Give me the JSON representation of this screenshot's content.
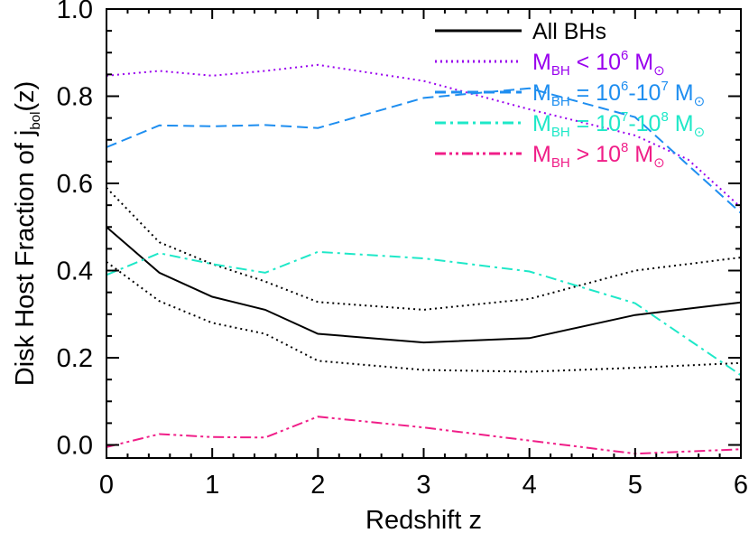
{
  "chart_data": {
    "type": "line",
    "title": "",
    "xlabel": "Redshift z",
    "ylabel": {
      "main": "Disk Host Fraction of j",
      "sub": "bol",
      "suffix": "(z)"
    },
    "xlim": [
      0,
      6
    ],
    "ylim": [
      -0.03,
      1.0
    ],
    "x_ticks": [
      0,
      1,
      2,
      3,
      4,
      5,
      6
    ],
    "x_tick_labels": [
      "0",
      "1",
      "2",
      "3",
      "4",
      "5",
      "6"
    ],
    "y_ticks": [
      0.0,
      0.2,
      0.4,
      0.6,
      0.8,
      1.0
    ],
    "y_tick_labels": [
      "0.0",
      "0.2",
      "0.4",
      "0.6",
      "0.8",
      "1.0"
    ],
    "grid": false,
    "legend_position": "top-right",
    "series": [
      {
        "id": "all",
        "legend": [
          {
            "t": "All BHs"
          }
        ],
        "color": "#000000",
        "style": "solid",
        "width": 2,
        "x": [
          0,
          0.5,
          1,
          1.5,
          2,
          3,
          4,
          5,
          6
        ],
        "y": [
          0.5,
          0.395,
          0.34,
          0.31,
          0.255,
          0.235,
          0.245,
          0.298,
          0.327
        ]
      },
      {
        "id": "all_upper",
        "legend": [],
        "color": "#000000",
        "style": "dotted",
        "width": 2,
        "x": [
          0,
          0.5,
          1,
          1.5,
          2,
          3,
          4,
          5,
          6
        ],
        "y": [
          0.59,
          0.465,
          0.415,
          0.375,
          0.328,
          0.31,
          0.335,
          0.4,
          0.43
        ]
      },
      {
        "id": "all_lower",
        "legend": [],
        "color": "#000000",
        "style": "dotted",
        "width": 2,
        "x": [
          0,
          0.5,
          1,
          1.5,
          2,
          3,
          4,
          5,
          6
        ],
        "y": [
          0.42,
          0.33,
          0.28,
          0.255,
          0.193,
          0.172,
          0.168,
          0.177,
          0.188
        ]
      },
      {
        "id": "low",
        "legend": [
          {
            "t": "M"
          },
          {
            "t": "BH",
            "sub": true
          },
          {
            "t": " < 10"
          },
          {
            "t": "6",
            "sup": true
          },
          {
            "t": " M"
          },
          {
            "t": "⊙",
            "sub": true
          }
        ],
        "color": "#9900ee",
        "style": "dotted",
        "width": 2,
        "x": [
          0,
          0.5,
          1,
          1.5,
          2,
          3,
          4,
          5,
          5.5,
          6
        ],
        "y": [
          0.847,
          0.858,
          0.847,
          0.858,
          0.872,
          0.835,
          0.77,
          0.71,
          0.655,
          0.545
        ]
      },
      {
        "id": "mid1",
        "legend": [
          {
            "t": "M"
          },
          {
            "t": "BH",
            "sub": true
          },
          {
            "t": " = 10"
          },
          {
            "t": "6",
            "sup": true
          },
          {
            "t": "-10"
          },
          {
            "t": "7",
            "sup": true
          },
          {
            "t": " M"
          },
          {
            "t": "⊙",
            "sub": true
          }
        ],
        "color": "#1e8ef0",
        "style": "dashed",
        "width": 2,
        "x": [
          0,
          0.5,
          1,
          1.5,
          2,
          3,
          4,
          5,
          6
        ],
        "y": [
          0.683,
          0.733,
          0.731,
          0.734,
          0.727,
          0.796,
          0.818,
          0.752,
          0.532
        ]
      },
      {
        "id": "mid2",
        "legend": [
          {
            "t": "M"
          },
          {
            "t": "BH",
            "sub": true
          },
          {
            "t": " = 10"
          },
          {
            "t": "7",
            "sup": true
          },
          {
            "t": "-10"
          },
          {
            "t": "8",
            "sup": true
          },
          {
            "t": " M"
          },
          {
            "t": "⊙",
            "sub": true
          }
        ],
        "color": "#1ee8c8",
        "style": "dashdot",
        "width": 2,
        "x": [
          0,
          0.5,
          1,
          1.5,
          2,
          3,
          4,
          5,
          6
        ],
        "y": [
          0.39,
          0.44,
          0.415,
          0.395,
          0.443,
          0.428,
          0.398,
          0.325,
          0.16
        ]
      },
      {
        "id": "high",
        "legend": [
          {
            "t": "M"
          },
          {
            "t": "BH",
            "sub": true
          },
          {
            "t": " > 10"
          },
          {
            "t": "8",
            "sup": true
          },
          {
            "t": " M"
          },
          {
            "t": "⊙",
            "sub": true
          }
        ],
        "color": "#f01e88",
        "style": "dashdotdot",
        "width": 2,
        "x": [
          0,
          0.5,
          1,
          1.5,
          2,
          3,
          4,
          5,
          6
        ],
        "y": [
          -0.005,
          0.025,
          0.018,
          0.017,
          0.065,
          0.04,
          0.01,
          -0.02,
          -0.01
        ]
      }
    ]
  }
}
